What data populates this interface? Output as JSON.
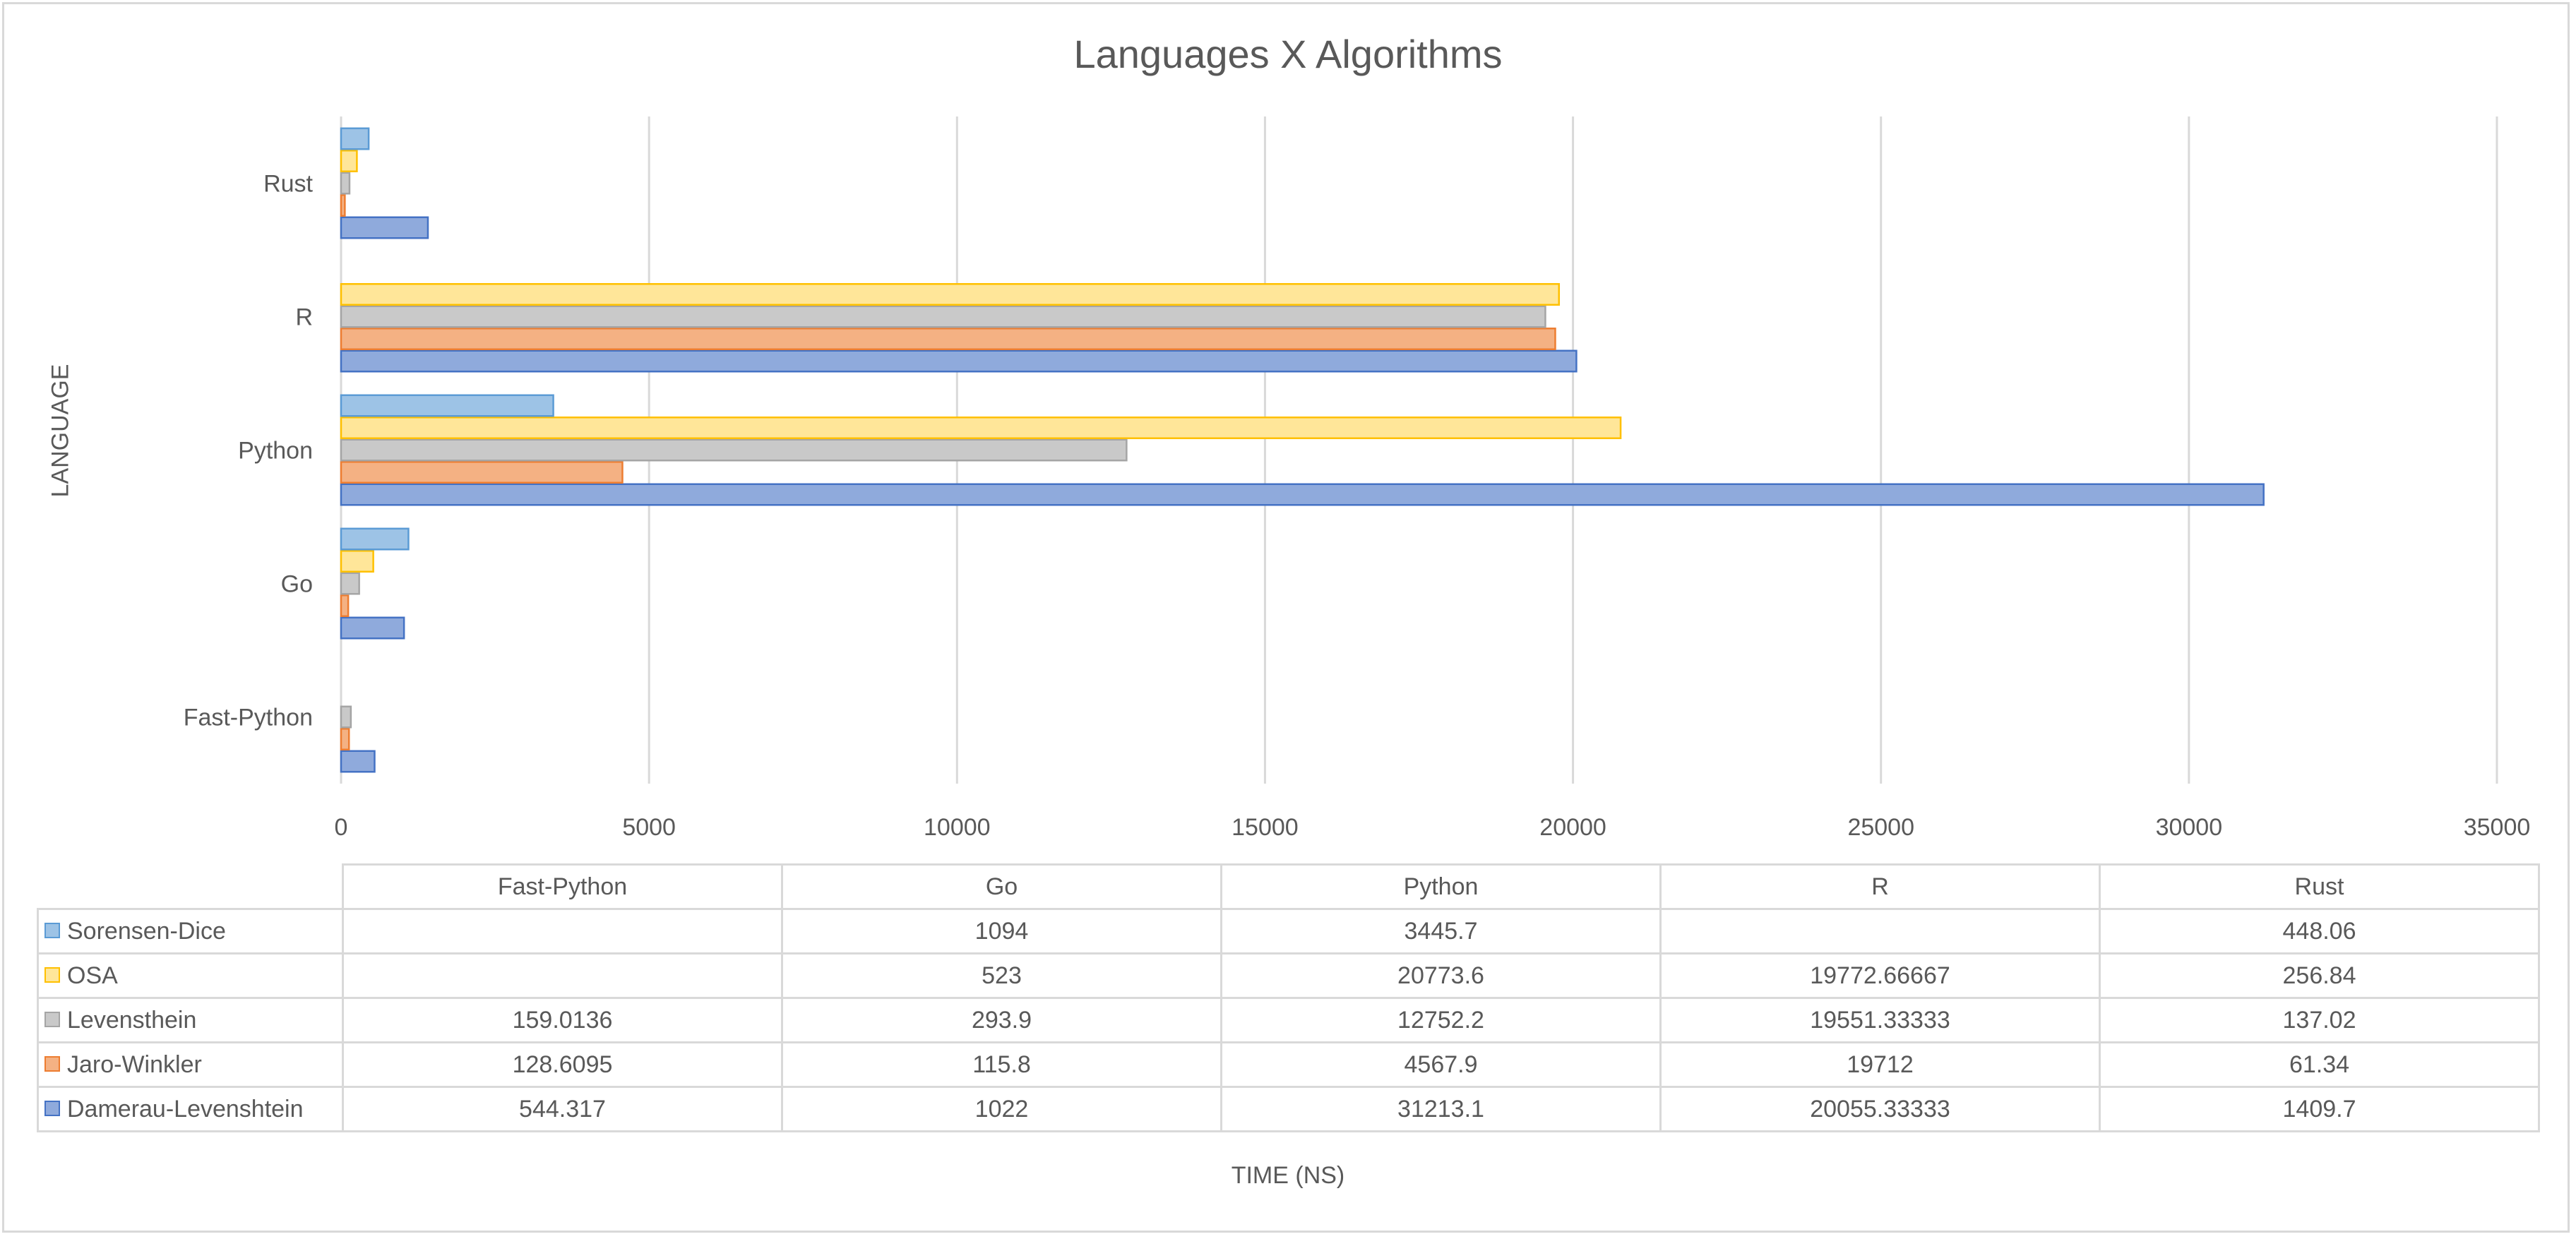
{
  "chart_data": {
    "type": "bar",
    "orientation": "horizontal",
    "title": "Languages X Algorithms",
    "xlabel": "TIME (NS)",
    "ylabel": "LANGUAGE",
    "categories": [
      "Fast-Python",
      "Go",
      "Python",
      "R",
      "Rust"
    ],
    "xlim": [
      0,
      35000
    ],
    "x_ticks": [
      "0",
      "5000",
      "10000",
      "15000",
      "20000",
      "25000",
      "30000",
      "35000"
    ],
    "x_tick_values": [
      0,
      5000,
      10000,
      15000,
      20000,
      25000,
      30000,
      35000
    ],
    "grid": true,
    "legend": "data-table",
    "series": [
      {
        "name": "Damerau-Levenshtein",
        "color": "#8faadc",
        "border": "#4472c4",
        "values": [
          544.317,
          1022,
          31213.1,
          20055.33333,
          1409.7
        ],
        "labels": [
          "544.317",
          "1022",
          "31213.1",
          "20055.33333",
          "1409.7"
        ]
      },
      {
        "name": "Jaro-Winkler",
        "color": "#f4b183",
        "border": "#ed7d31",
        "values": [
          128.6095,
          115.8,
          4567.9,
          19712,
          61.34
        ],
        "labels": [
          "128.6095",
          "115.8",
          "4567.9",
          "19712",
          "61.34"
        ]
      },
      {
        "name": "Levensthein",
        "color": "#c9c9c9",
        "border": "#a5a5a5",
        "values": [
          159.0136,
          293.9,
          12752.2,
          19551.33333,
          137.02
        ],
        "labels": [
          "159.0136",
          "293.9",
          "12752.2",
          "19551.33333",
          "137.02"
        ]
      },
      {
        "name": "OSA",
        "color": "#ffe699",
        "border": "#ffc000",
        "values": [
          null,
          523,
          20773.6,
          19772.66667,
          256.84
        ],
        "labels": [
          "",
          "523",
          "20773.6",
          "19772.66667",
          "256.84"
        ]
      },
      {
        "name": "Sorensen-Dice",
        "color": "#9dc3e6",
        "border": "#5b9bd5",
        "values": [
          null,
          1094,
          3445.7,
          null,
          448.06
        ],
        "labels": [
          "",
          "1094",
          "3445.7",
          "",
          "448.06"
        ]
      }
    ],
    "table_series_order": [
      "Sorensen-Dice",
      "OSA",
      "Levensthein",
      "Jaro-Winkler",
      "Damerau-Levenshtein"
    ]
  }
}
